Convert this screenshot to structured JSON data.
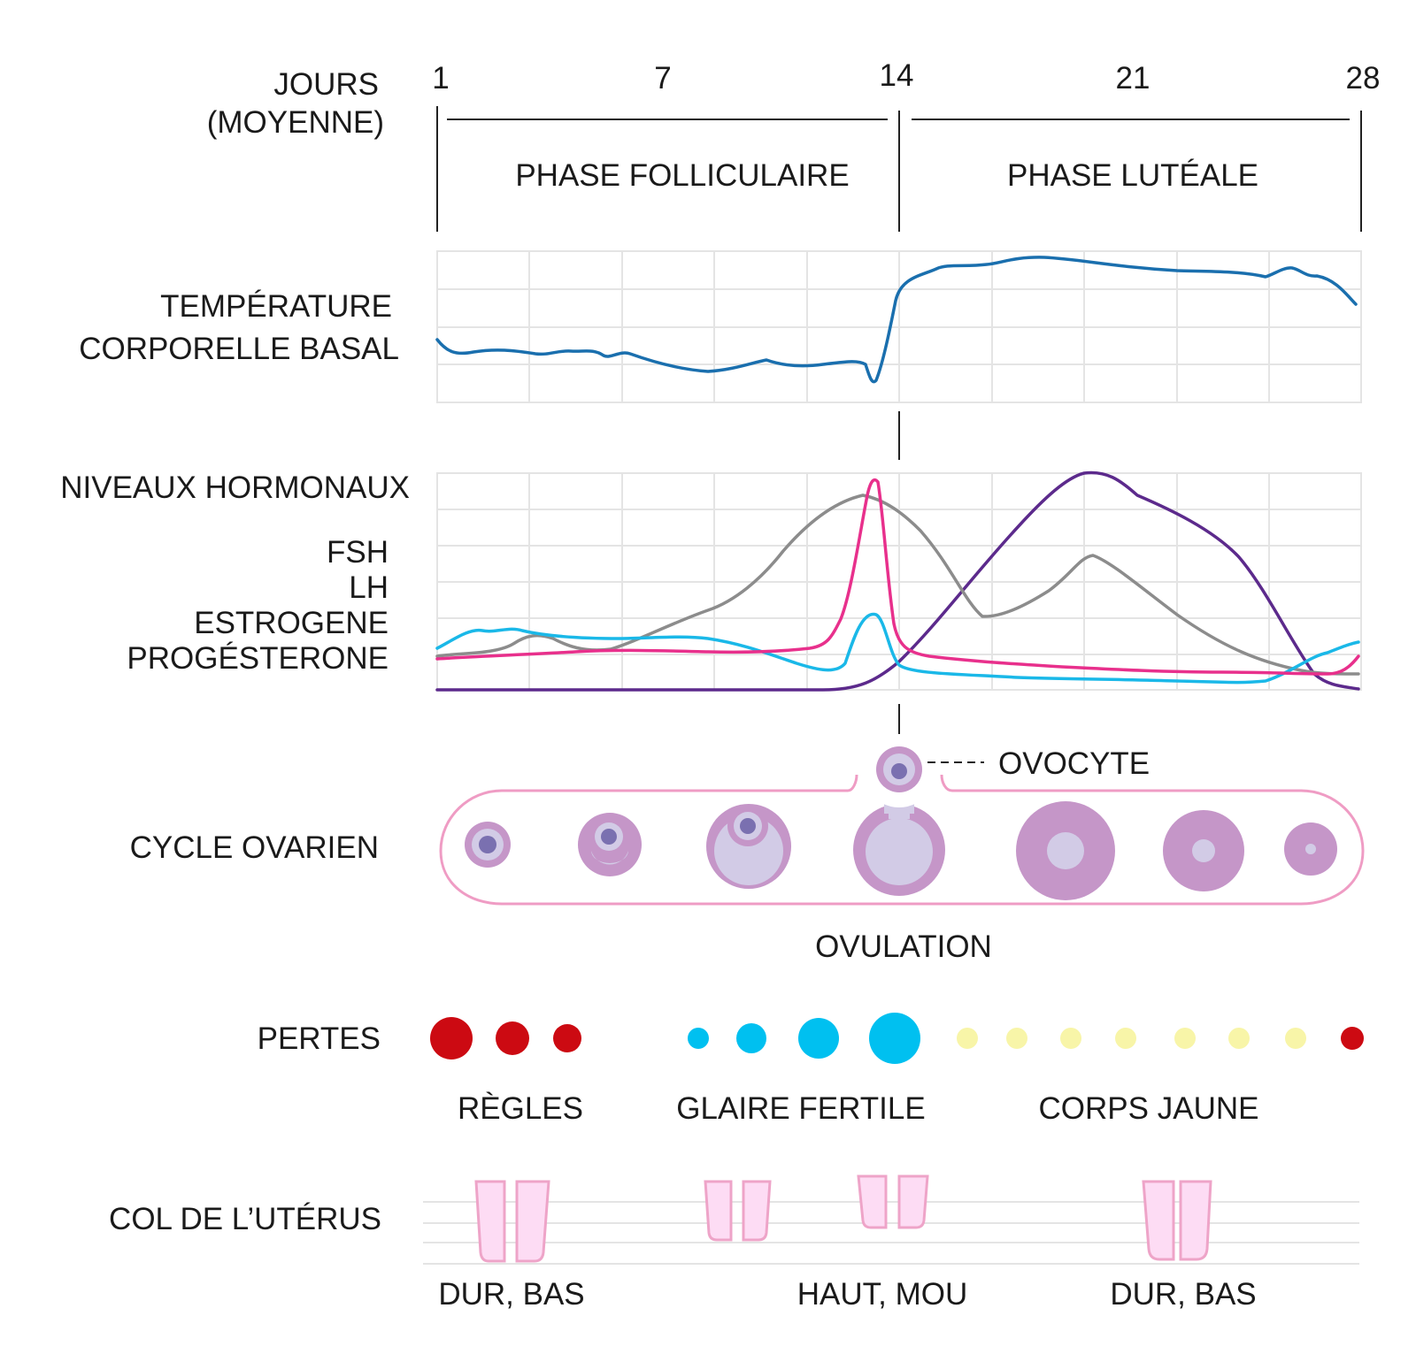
{
  "colors": {
    "temperature": "#1a6fae",
    "fsh": "#1ab8e8",
    "lh": "#e8308c",
    "estrogen": "#8c8c8c",
    "progesterone": "#5c2a8c",
    "ovary_outline": "#ef9cc4",
    "follicle": "#c596c8",
    "follicle_light": "#d2cbe6",
    "nucleus": "#7a70b0",
    "regles": "#cc0a12",
    "glaire": "#00c0f0",
    "corps_jaune": "#f8f5a8",
    "cervix_fill": "#fddcf4",
    "cervix_stroke": "#eea4c8"
  },
  "header": {
    "days_label_line1": "JOURS",
    "days_label_line2": "(MOYENNE)",
    "day_ticks": [
      "1",
      "7",
      "14",
      "21",
      "28"
    ],
    "phase_follicular": "PHASE FOLLICULAIRE",
    "phase_luteal": "PHASE LUTÉALE"
  },
  "temperature": {
    "label_line1": "TEMPÉRATURE",
    "label_line2": "CORPORELLE  BASAL"
  },
  "hormones": {
    "title": "NIVEAUX  HORMONAUX",
    "legend": [
      {
        "key": "fsh",
        "label": "FSH"
      },
      {
        "key": "lh",
        "label": "LH"
      },
      {
        "key": "estrogen",
        "label": "ESTROGENE"
      },
      {
        "key": "progesterone",
        "label": "PROGÉSTERONE"
      }
    ]
  },
  "ovary": {
    "label": "CYCLE OVARIEN",
    "oocyte_label": "OVOCYTE",
    "ovulation_label": "OVULATION"
  },
  "discharge": {
    "label": "PERTES",
    "groups": [
      "RÈGLES",
      "GLAIRE FERTILE",
      "CORPS JAUNE"
    ]
  },
  "cervix": {
    "label": "COL DE L’UTÉRUS",
    "states": [
      "DUR, BAS",
      "HAUT, MOU",
      "DUR, BAS"
    ]
  }
}
